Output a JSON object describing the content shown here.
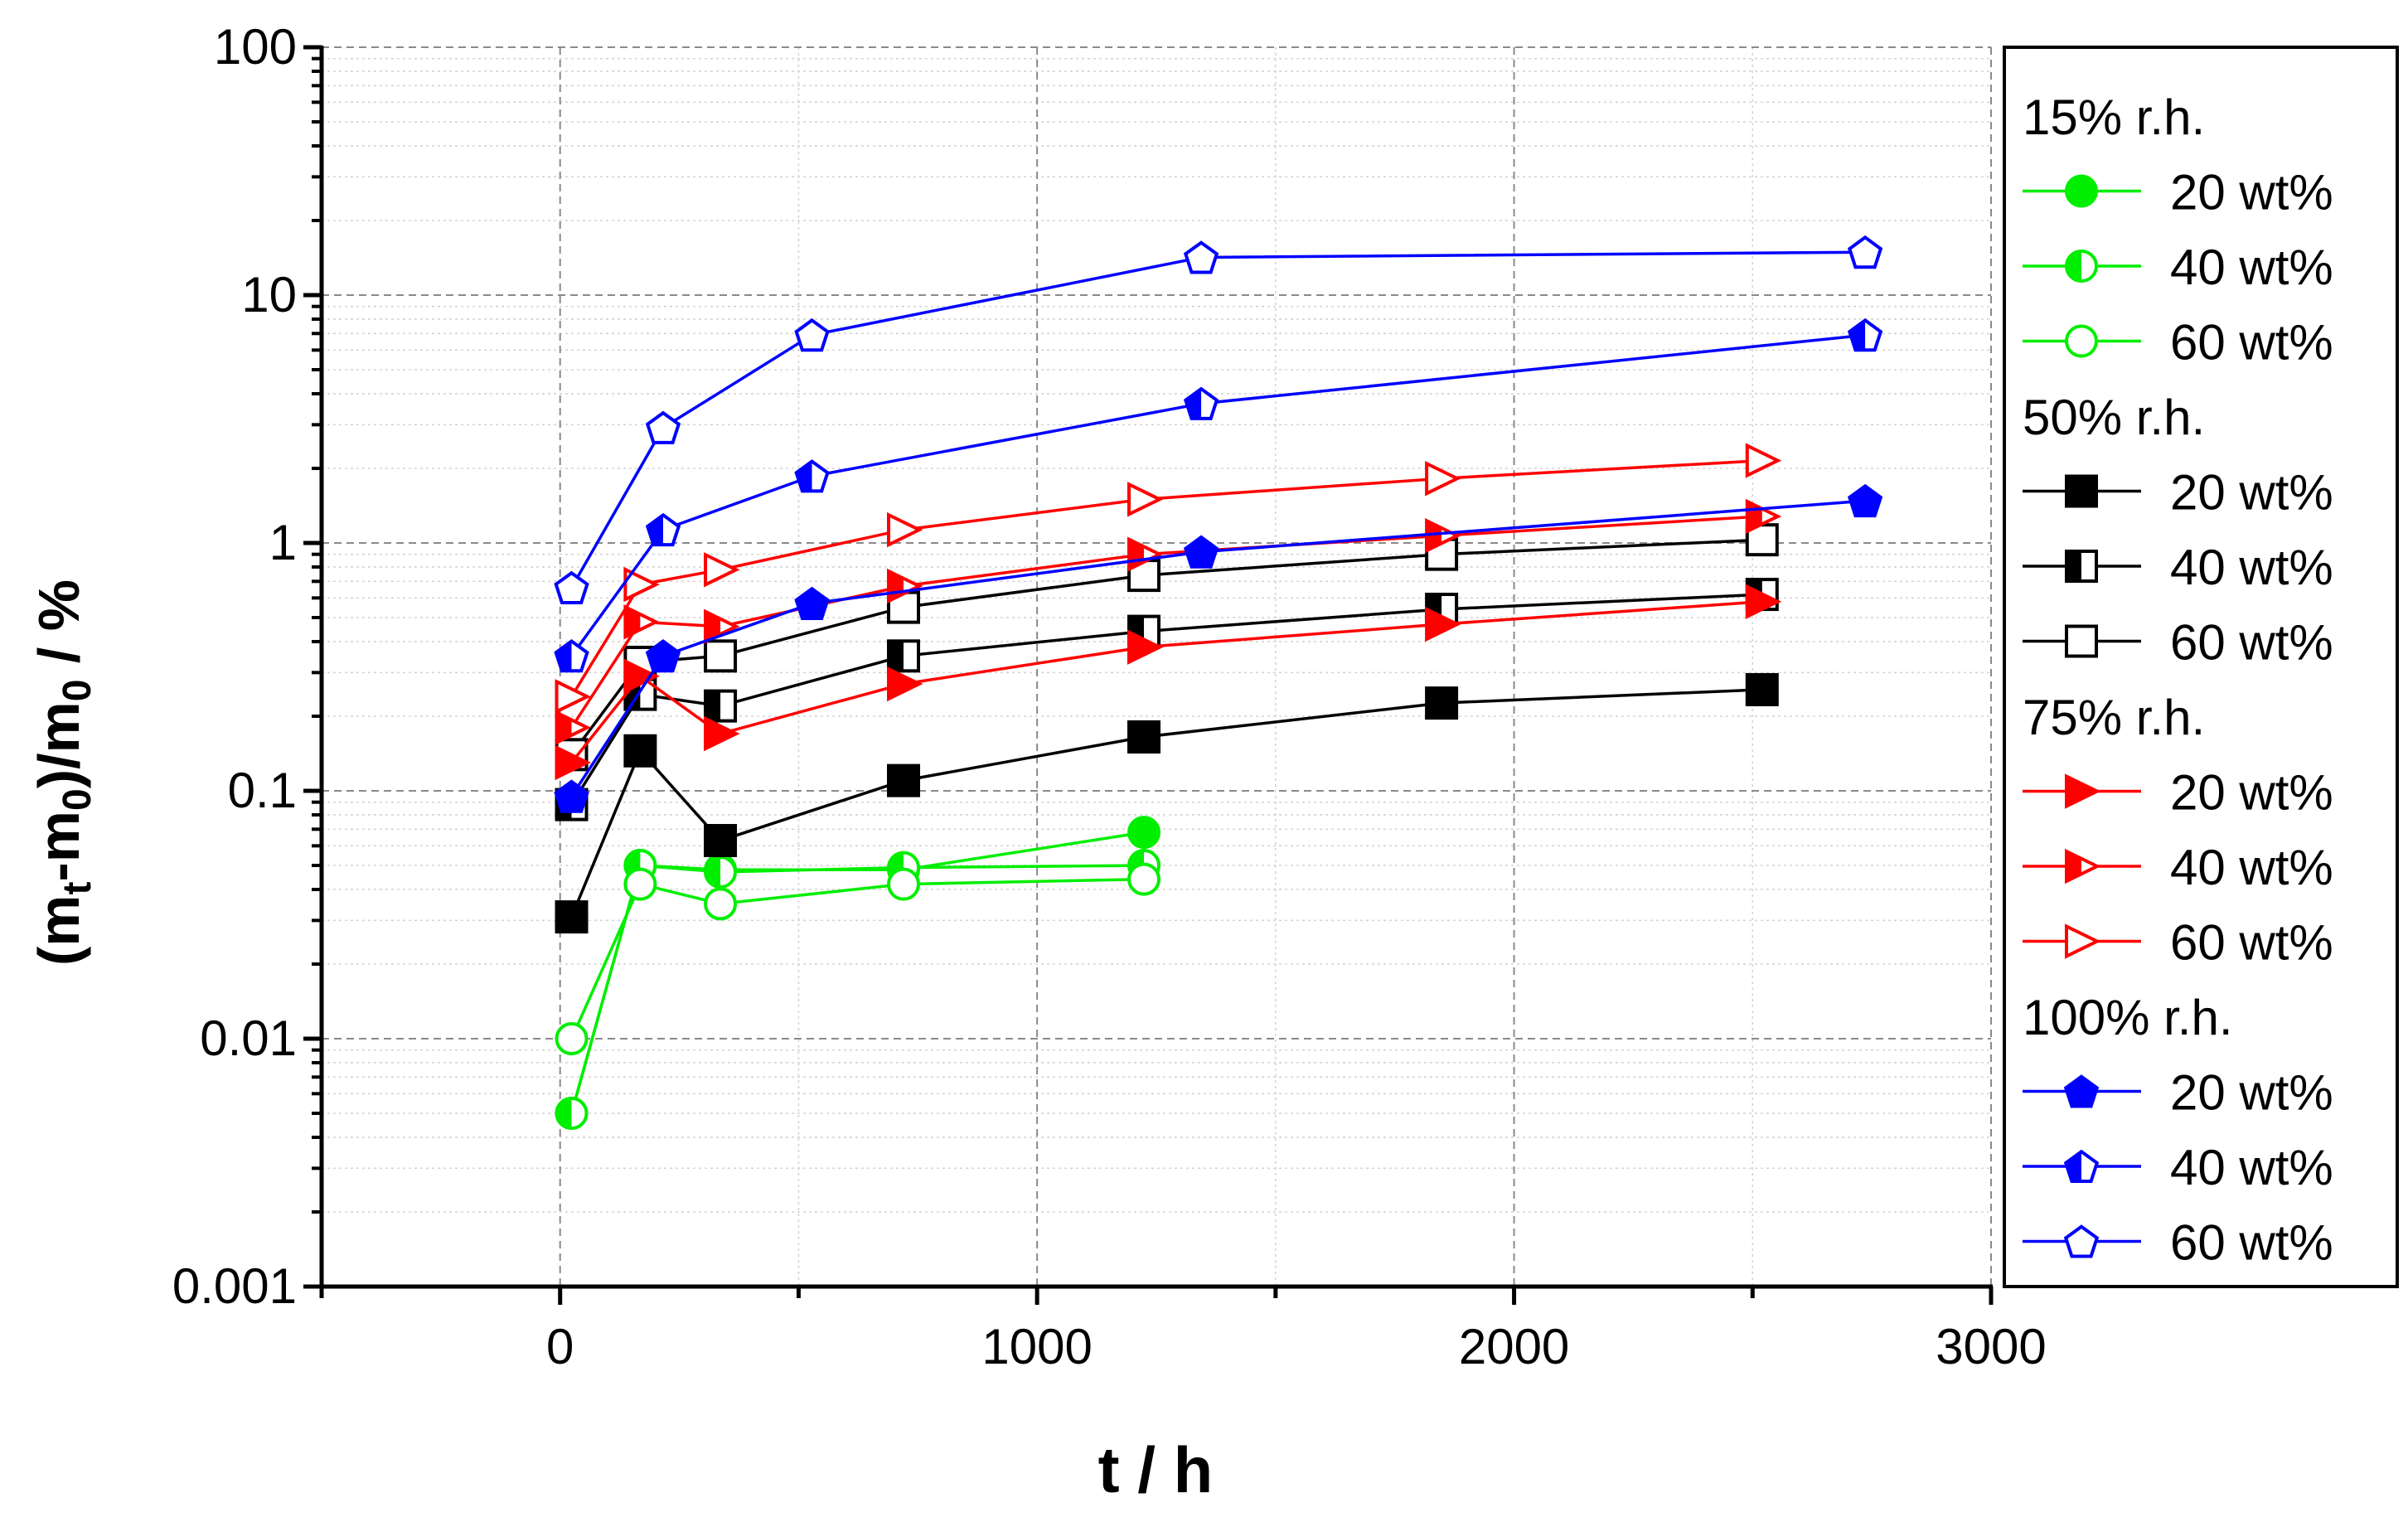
{
  "chart_data": {
    "type": "line",
    "title": "",
    "xlabel": "t / h",
    "ylabel": "(mt-m0)/m0 / %",
    "xlim": [
      -500,
      3000
    ],
    "ylim": [
      0.001,
      100
    ],
    "yscale": "log",
    "grid": true,
    "x_ticks": [
      "0",
      "1000",
      "2000",
      "3000"
    ],
    "y_ticks": [
      "0.001",
      "0.01",
      "0.1",
      "1",
      "10",
      "100"
    ],
    "legend_position": "right",
    "groups": [
      {
        "label": "15% r.h.",
        "color": "#00ee00",
        "series": [
          {
            "name": "20 wt%",
            "fill": "full",
            "marker": "circle",
            "x": [
              24,
              168,
              336,
              720,
              1224
            ],
            "y": [
              0.005,
              0.05,
              0.048,
              0.048,
              0.068
            ]
          },
          {
            "name": "40 wt%",
            "fill": "half",
            "marker": "circle",
            "x": [
              24,
              168,
              336,
              720,
              1224
            ],
            "y": [
              0.005,
              0.05,
              0.047,
              0.049,
              0.05
            ]
          },
          {
            "name": "60 wt%",
            "fill": "none",
            "marker": "circle",
            "x": [
              24,
              168,
              336,
              720,
              1224
            ],
            "y": [
              0.01,
              0.042,
              0.035,
              0.042,
              0.044
            ]
          }
        ]
      },
      {
        "label": "50% r.h.",
        "color": "#000000",
        "series": [
          {
            "name": "20 wt%",
            "fill": "full",
            "marker": "square",
            "x": [
              24,
              168,
              336,
              720,
              1224,
              1848,
              2520
            ],
            "y": [
              0.031,
              0.145,
              0.063,
              0.11,
              0.165,
              0.226,
              0.256
            ]
          },
          {
            "name": "40 wt%",
            "fill": "half",
            "marker": "square",
            "x": [
              24,
              168,
              336,
              720,
              1224,
              1848,
              2520
            ],
            "y": [
              0.088,
              0.245,
              0.22,
              0.35,
              0.44,
              0.54,
              0.62
            ]
          },
          {
            "name": "60 wt%",
            "fill": "none",
            "marker": "square",
            "x": [
              24,
              168,
              336,
              720,
              1224,
              1848,
              2520
            ],
            "y": [
              0.14,
              0.33,
              0.35,
              0.55,
              0.74,
              0.9,
              1.03
            ]
          }
        ]
      },
      {
        "label": "75% r.h.",
        "color": "#ff0000",
        "series": [
          {
            "name": "20 wt%",
            "fill": "full",
            "marker": "triangle",
            "x": [
              24,
              168,
              336,
              720,
              1224,
              1848,
              2520
            ],
            "y": [
              0.13,
              0.29,
              0.17,
              0.27,
              0.38,
              0.47,
              0.58
            ]
          },
          {
            "name": "40 wt%",
            "fill": "half",
            "marker": "triangle",
            "x": [
              24,
              168,
              336,
              720,
              1224,
              1848,
              2520
            ],
            "y": [
              0.18,
              0.48,
              0.46,
              0.67,
              0.9,
              1.07,
              1.28
            ]
          },
          {
            "name": "60 wt%",
            "fill": "none",
            "marker": "triangle",
            "x": [
              24,
              168,
              336,
              720,
              1224,
              1848,
              2520
            ],
            "y": [
              0.24,
              0.68,
              0.78,
              1.13,
              1.5,
              1.82,
              2.15
            ]
          }
        ]
      },
      {
        "label": "100% r.h.",
        "color": "#0000ff",
        "series": [
          {
            "name": "20 wt%",
            "fill": "full",
            "marker": "pentagon",
            "x": [
              24,
              216,
              528,
              1344,
              2736
            ],
            "y": [
              0.095,
              0.35,
              0.57,
              0.92,
              1.48
            ]
          },
          {
            "name": "40 wt%",
            "fill": "half",
            "marker": "pentagon",
            "x": [
              24,
              216,
              528,
              1344,
              2736
            ],
            "y": [
              0.35,
              1.13,
              1.86,
              3.65,
              6.9
            ]
          },
          {
            "name": "60 wt%",
            "fill": "none",
            "marker": "pentagon",
            "x": [
              24,
              216,
              528,
              1344,
              2736
            ],
            "y": [
              0.66,
              2.92,
              6.9,
              14.2,
              14.9
            ]
          }
        ]
      }
    ]
  }
}
